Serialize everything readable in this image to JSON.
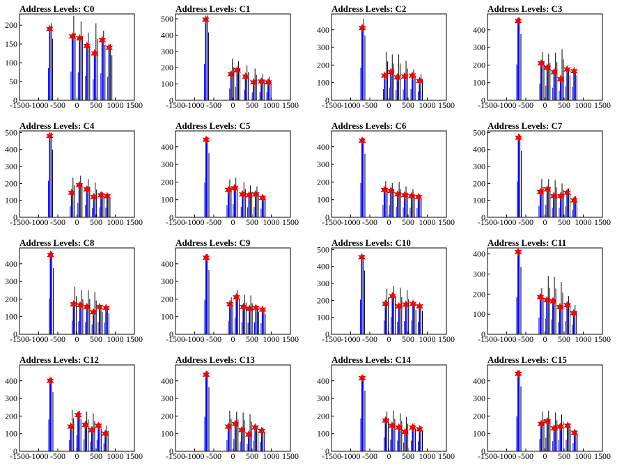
{
  "chart_data": {
    "type": "bar",
    "colors": {
      "bar": "#0000ff",
      "bar_shadow": "#000000",
      "marker": "#ff0000",
      "axis": "#000000"
    },
    "marker": "red-star",
    "xlim": [
      -1500,
      1500
    ],
    "xticks": [
      -1500,
      -1000,
      -500,
      0,
      500,
      1000,
      1500
    ],
    "panels": [
      {
        "title": "Address Levels: C0",
        "ylim": [
          0,
          230
        ],
        "yticks": [
          0,
          50,
          100,
          150,
          200
        ],
        "x": [
          -710,
          -120,
          70,
          260,
          460,
          660,
          840
        ],
        "values": [
          190,
          170,
          165,
          145,
          125,
          160,
          140
        ],
        "shadow": [
          205,
          225,
          210,
          180,
          205,
          185,
          150
        ]
      },
      {
        "title": "Address Levels: C1",
        "ylim": [
          0,
          530
        ],
        "yticks": [
          0,
          100,
          200,
          300,
          400,
          500
        ],
        "x": [
          -710,
          -50,
          110,
          330,
          540,
          740,
          920
        ],
        "values": [
          495,
          160,
          185,
          145,
          110,
          115,
          110
        ],
        "shadow": [
          520,
          255,
          240,
          215,
          195,
          160,
          145
        ]
      },
      {
        "title": "Address Levels: C2",
        "ylim": [
          0,
          490
        ],
        "yticks": [
          0,
          100,
          200,
          300,
          400
        ],
        "x": [
          -700,
          -110,
          50,
          220,
          410,
          610,
          800
        ],
        "values": [
          410,
          140,
          160,
          130,
          135,
          140,
          110
        ],
        "shadow": [
          460,
          275,
          260,
          260,
          225,
          175,
          150
        ]
      },
      {
        "title": "Address Levels: C3",
        "ylim": [
          0,
          490
        ],
        "yticks": [
          0,
          100,
          200,
          300,
          400
        ],
        "x": [
          -700,
          -100,
          60,
          240,
          410,
          580,
          760
        ],
        "values": [
          450,
          210,
          185,
          160,
          120,
          175,
          165
        ],
        "shadow": [
          470,
          275,
          265,
          270,
          290,
          180,
          175
        ]
      },
      {
        "title": "Address Levels: C4",
        "ylim": [
          0,
          510
        ],
        "yticks": [
          0,
          100,
          200,
          300,
          400,
          500
        ],
        "x": [
          -710,
          -140,
          60,
          260,
          440,
          630,
          790
        ],
        "values": [
          480,
          145,
          190,
          165,
          120,
          130,
          125
        ],
        "shadow": [
          500,
          235,
          245,
          225,
          205,
          150,
          140
        ]
      },
      {
        "title": "Address Levels: C5",
        "ylim": [
          0,
          490
        ],
        "yticks": [
          0,
          100,
          200,
          300,
          400
        ],
        "x": [
          -700,
          -120,
          40,
          250,
          420,
          590,
          770
        ],
        "values": [
          440,
          155,
          165,
          130,
          125,
          130,
          110
        ],
        "shadow": [
          455,
          215,
          225,
          200,
          180,
          175,
          125
        ]
      },
      {
        "title": "Address Levels: C6",
        "ylim": [
          0,
          490
        ],
        "yticks": [
          0,
          100,
          200,
          300,
          400
        ],
        "x": [
          -700,
          -120,
          50,
          230,
          410,
          590,
          770
        ],
        "values": [
          435,
          155,
          150,
          130,
          125,
          120,
          115
        ],
        "shadow": [
          450,
          205,
          195,
          200,
          175,
          160,
          130
        ]
      },
      {
        "title": "Address Levels: C7",
        "ylim": [
          0,
          510
        ],
        "yticks": [
          0,
          100,
          200,
          300,
          400,
          500
        ],
        "x": [
          -690,
          -120,
          60,
          230,
          410,
          580,
          760
        ],
        "values": [
          470,
          150,
          165,
          125,
          125,
          145,
          100
        ],
        "shadow": [
          490,
          225,
          225,
          220,
          200,
          170,
          125
        ]
      },
      {
        "title": "Address Levels: C8",
        "ylim": [
          0,
          490
        ],
        "yticks": [
          0,
          100,
          200,
          300,
          400
        ],
        "x": [
          -690,
          -90,
          80,
          260,
          430,
          590,
          760
        ],
        "values": [
          450,
          170,
          165,
          155,
          125,
          155,
          150
        ],
        "shadow": [
          470,
          270,
          250,
          250,
          240,
          160,
          150
        ]
      },
      {
        "title": "Address Levels: C9",
        "ylim": [
          0,
          490
        ],
        "yticks": [
          0,
          100,
          200,
          300,
          400
        ],
        "x": [
          -700,
          -80,
          90,
          270,
          430,
          600,
          770
        ],
        "values": [
          435,
          170,
          210,
          155,
          145,
          150,
          140
        ],
        "shadow": [
          455,
          210,
          250,
          225,
          220,
          160,
          145
        ]
      },
      {
        "title": "Address Levels: C10",
        "ylim": [
          0,
          510
        ],
        "yticks": [
          0,
          100,
          200,
          300,
          400,
          500
        ],
        "x": [
          -710,
          -90,
          90,
          260,
          440,
          630,
          800
        ],
        "values": [
          455,
          180,
          225,
          165,
          175,
          180,
          165
        ],
        "shadow": [
          470,
          270,
          285,
          275,
          260,
          180,
          175
        ]
      },
      {
        "title": "Address Levels: C11",
        "ylim": [
          0,
          430
        ],
        "yticks": [
          0,
          100,
          200,
          300,
          400
        ],
        "x": [
          -700,
          -120,
          50,
          210,
          390,
          580,
          750
        ],
        "values": [
          410,
          185,
          170,
          165,
          135,
          145,
          105
        ],
        "shadow": [
          420,
          230,
          290,
          285,
          260,
          190,
          145
        ]
      },
      {
        "title": "Address Levels: C12",
        "ylim": [
          0,
          490
        ],
        "yticks": [
          0,
          100,
          200,
          300,
          400
        ],
        "x": [
          -700,
          -160,
          30,
          220,
          390,
          560,
          740
        ],
        "values": [
          400,
          140,
          205,
          150,
          120,
          145,
          100
        ],
        "shadow": [
          420,
          235,
          230,
          225,
          215,
          160,
          145
        ]
      },
      {
        "title": "Address Levels: C13",
        "ylim": [
          0,
          490
        ],
        "yticks": [
          0,
          100,
          200,
          300,
          400
        ],
        "x": [
          -700,
          -120,
          60,
          230,
          410,
          580,
          750
        ],
        "values": [
          435,
          140,
          155,
          120,
          95,
          135,
          115
        ],
        "shadow": [
          455,
          230,
          225,
          220,
          210,
          145,
          135
        ]
      },
      {
        "title": "Address Levels: C14",
        "ylim": [
          0,
          490
        ],
        "yticks": [
          0,
          100,
          200,
          300,
          400
        ],
        "x": [
          -700,
          -90,
          80,
          260,
          420,
          620,
          800
        ],
        "values": [
          415,
          175,
          145,
          135,
          110,
          135,
          125
        ],
        "shadow": [
          430,
          225,
          230,
          215,
          195,
          160,
          145
        ]
      },
      {
        "title": "Address Levels: C15",
        "ylim": [
          0,
          490
        ],
        "yticks": [
          0,
          100,
          200,
          300,
          400
        ],
        "x": [
          -700,
          -100,
          60,
          240,
          400,
          590,
          770
        ],
        "values": [
          440,
          155,
          170,
          130,
          140,
          145,
          105
        ],
        "shadow": [
          460,
          225,
          230,
          220,
          210,
          160,
          120
        ]
      }
    ]
  }
}
